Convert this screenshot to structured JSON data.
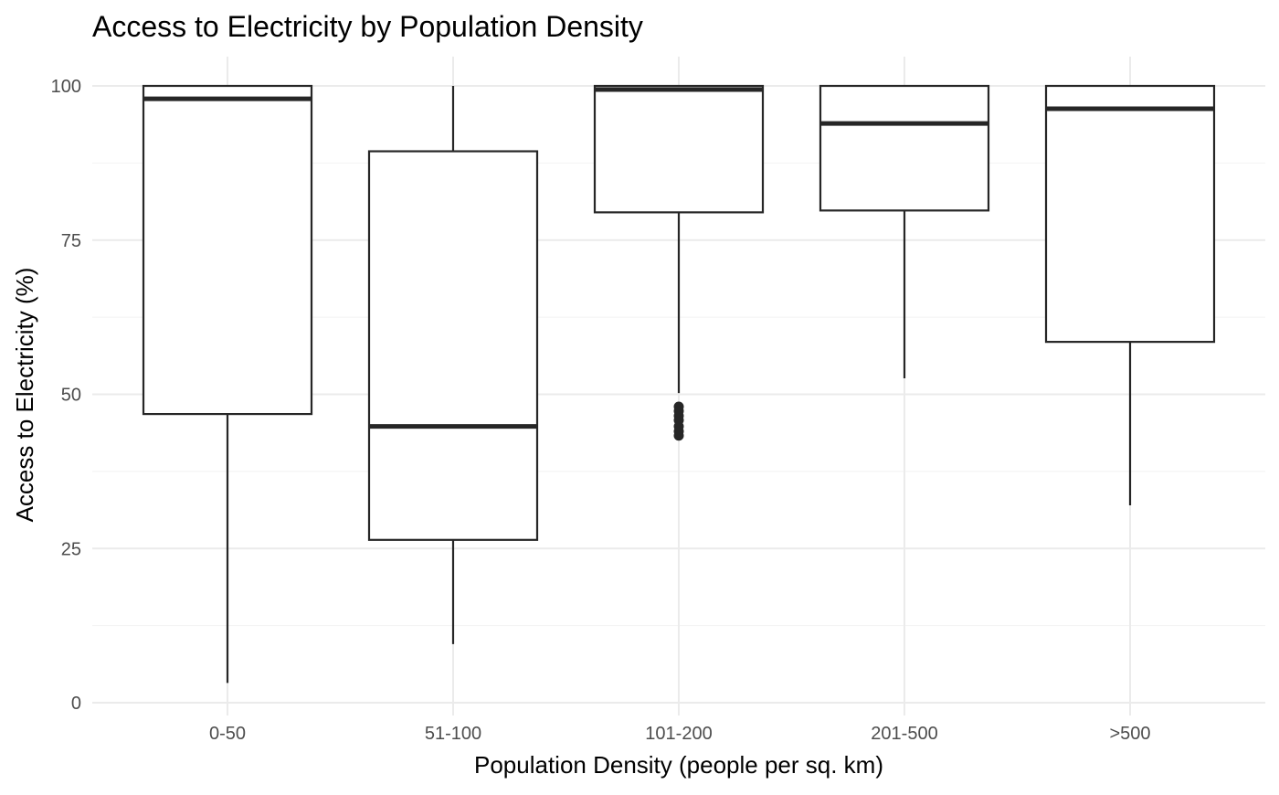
{
  "chart_data": {
    "type": "boxplot",
    "title": "Access to Electricity by Population Density",
    "xlabel": "Population Density (people per sq. km)",
    "ylabel": "Access to Electricity (%)",
    "ylim": [
      0,
      100
    ],
    "yticks": [
      0,
      25,
      50,
      75,
      100
    ],
    "yticks_labels": [
      "0",
      "25",
      "50",
      "75",
      "100"
    ],
    "grid": true,
    "categories": [
      "0-50",
      "51-100",
      "101-200",
      "201-500",
      ">500"
    ],
    "boxes": [
      {
        "category": "0-50",
        "whisker_low": 3.2,
        "q1": 46.8,
        "median": 97.9,
        "q3": 100,
        "whisker_high": 100,
        "outliers": []
      },
      {
        "category": "51-100",
        "whisker_low": 9.5,
        "q1": 26.4,
        "median": 44.8,
        "q3": 89.4,
        "whisker_high": 100,
        "outliers": []
      },
      {
        "category": "101-200",
        "whisker_low": 50.2,
        "q1": 79.5,
        "median": 99.4,
        "q3": 100,
        "whisker_high": 100,
        "outliers": [
          48.0,
          47.3,
          46.5,
          45.8,
          44.8,
          44.0,
          43.3
        ]
      },
      {
        "category": "201-500",
        "whisker_low": 52.6,
        "q1": 79.8,
        "median": 93.9,
        "q3": 100,
        "whisker_high": 100,
        "outliers": []
      },
      {
        "category": ">500",
        "whisker_low": 32.0,
        "q1": 58.5,
        "median": 96.3,
        "q3": 100,
        "whisker_high": 100,
        "outliers": []
      }
    ]
  }
}
